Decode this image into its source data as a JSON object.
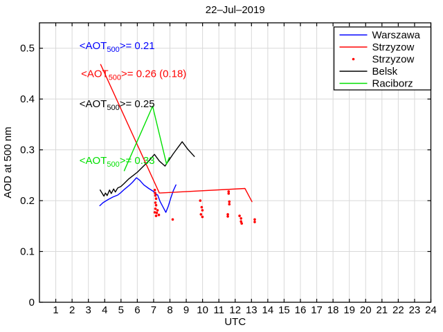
{
  "title": "22–Jul–2019",
  "chart_data": {
    "type": "line",
    "title": "22–Jul–2019",
    "xlabel": "UTC",
    "ylabel": "AOD at 500 nm",
    "xlim": [
      0,
      24
    ],
    "ylim": [
      0,
      0.55
    ],
    "xticks": [
      1,
      2,
      3,
      4,
      5,
      6,
      7,
      8,
      9,
      10,
      11,
      12,
      13,
      14,
      15,
      16,
      17,
      18,
      19,
      20,
      21,
      22,
      23,
      24
    ],
    "yticks": [
      0,
      0.1,
      0.2,
      0.3,
      0.4,
      0.5
    ],
    "ytick_labels": [
      "0",
      "0.1",
      "0.2",
      "0.3",
      "0.4",
      "0.5"
    ],
    "grid": true,
    "grid_color": "#d8d8d8",
    "axis_color": "#000000",
    "background": "#ffffff",
    "legend_position": "top-right",
    "series": [
      {
        "name": "Warszawa",
        "style": "line",
        "color": "#0000ff",
        "points": [
          [
            3.7,
            0.19
          ],
          [
            3.9,
            0.196
          ],
          [
            4.2,
            0.202
          ],
          [
            4.5,
            0.207
          ],
          [
            4.8,
            0.211
          ],
          [
            5.0,
            0.216
          ],
          [
            5.2,
            0.222
          ],
          [
            5.5,
            0.23
          ],
          [
            5.7,
            0.236
          ],
          [
            5.95,
            0.245
          ],
          [
            6.15,
            0.24
          ],
          [
            6.4,
            0.231
          ],
          [
            6.7,
            0.224
          ],
          [
            7.0,
            0.218
          ],
          [
            7.1,
            0.214
          ],
          [
            7.25,
            0.211
          ],
          [
            7.4,
            0.198
          ],
          [
            7.6,
            0.186
          ],
          [
            7.75,
            0.177
          ],
          [
            7.9,
            0.189
          ],
          [
            8.05,
            0.205
          ],
          [
            8.2,
            0.219
          ],
          [
            8.37,
            0.231
          ]
        ]
      },
      {
        "name": "Strzyzow",
        "style": "line",
        "color": "#ff0000",
        "points": [
          [
            3.75,
            0.468
          ],
          [
            7.35,
            0.215
          ],
          [
            12.6,
            0.224
          ],
          [
            13.03,
            0.198
          ]
        ]
      },
      {
        "name": "Strzyzow",
        "style": "scatter",
        "color": "#ff0000",
        "marker": "dot",
        "points": [
          [
            7.07,
            0.221
          ],
          [
            7.09,
            0.215
          ],
          [
            7.11,
            0.21
          ],
          [
            7.15,
            0.204
          ],
          [
            7.11,
            0.196
          ],
          [
            7.15,
            0.191
          ],
          [
            7.11,
            0.184
          ],
          [
            7.24,
            0.181
          ],
          [
            7.07,
            0.177
          ],
          [
            7.19,
            0.176
          ],
          [
            7.15,
            0.17
          ],
          [
            7.32,
            0.172
          ],
          [
            8.17,
            0.163
          ],
          [
            9.86,
            0.2
          ],
          [
            9.95,
            0.187
          ],
          [
            9.99,
            0.181
          ],
          [
            9.9,
            0.173
          ],
          [
            9.99,
            0.168
          ],
          [
            11.6,
            0.218
          ],
          [
            11.6,
            0.214
          ],
          [
            11.64,
            0.198
          ],
          [
            11.64,
            0.193
          ],
          [
            11.55,
            0.173
          ],
          [
            11.55,
            0.169
          ],
          [
            12.27,
            0.17
          ],
          [
            12.36,
            0.165
          ],
          [
            12.36,
            0.159
          ],
          [
            12.4,
            0.155
          ],
          [
            13.2,
            0.163
          ],
          [
            13.2,
            0.158
          ]
        ]
      },
      {
        "name": "Belsk",
        "style": "line",
        "color": "#000000",
        "points": [
          [
            3.72,
            0.221
          ],
          [
            3.95,
            0.209
          ],
          [
            4.05,
            0.215
          ],
          [
            4.15,
            0.21
          ],
          [
            4.3,
            0.221
          ],
          [
            4.4,
            0.214
          ],
          [
            4.55,
            0.223
          ],
          [
            4.65,
            0.217
          ],
          [
            4.8,
            0.225
          ],
          [
            5.0,
            0.228
          ],
          [
            5.2,
            0.234
          ],
          [
            5.45,
            0.242
          ],
          [
            6.0,
            0.256
          ],
          [
            6.35,
            0.267
          ],
          [
            6.7,
            0.278
          ],
          [
            7.05,
            0.291
          ],
          [
            7.35,
            0.278
          ],
          [
            7.7,
            0.268
          ],
          [
            8.2,
            0.292
          ],
          [
            8.75,
            0.316
          ],
          [
            9.1,
            0.301
          ],
          [
            9.5,
            0.287
          ]
        ]
      },
      {
        "name": "Raciborz",
        "style": "line",
        "color": "#00e000",
        "points": [
          [
            5.2,
            0.259
          ],
          [
            6.94,
            0.386
          ],
          [
            7.79,
            0.272
          ],
          [
            7.96,
            0.285
          ]
        ]
      }
    ],
    "legend": [
      {
        "label": "Warszawa",
        "color": "#0000ff",
        "style": "line"
      },
      {
        "label": "Strzyzow",
        "color": "#ff0000",
        "style": "line"
      },
      {
        "label": "Strzyzow",
        "color": "#ff0000",
        "style": "dot"
      },
      {
        "label": "Belsk",
        "color": "#000000",
        "style": "line"
      },
      {
        "label": "Raciborz",
        "color": "#00e000",
        "style": "line"
      }
    ],
    "annotations": [
      {
        "pre": "<AOT",
        "sub": "500",
        "post": ">= 0.21",
        "color": "#0000ff",
        "x": 2.45,
        "y": 0.505
      },
      {
        "pre": "<AOT",
        "sub": "500",
        "post": ">= 0.26 (0.18)",
        "color": "#ff0000",
        "x": 2.55,
        "y": 0.45
      },
      {
        "pre": "<AOT",
        "sub": "500",
        "post": ">= 0.25",
        "color": "#000000",
        "x": 2.45,
        "y": 0.391
      },
      {
        "pre": "<AOT",
        "sub": "500",
        "post": ">= 0.33",
        "color": "#00e000",
        "x": 2.45,
        "y": 0.279
      }
    ]
  }
}
